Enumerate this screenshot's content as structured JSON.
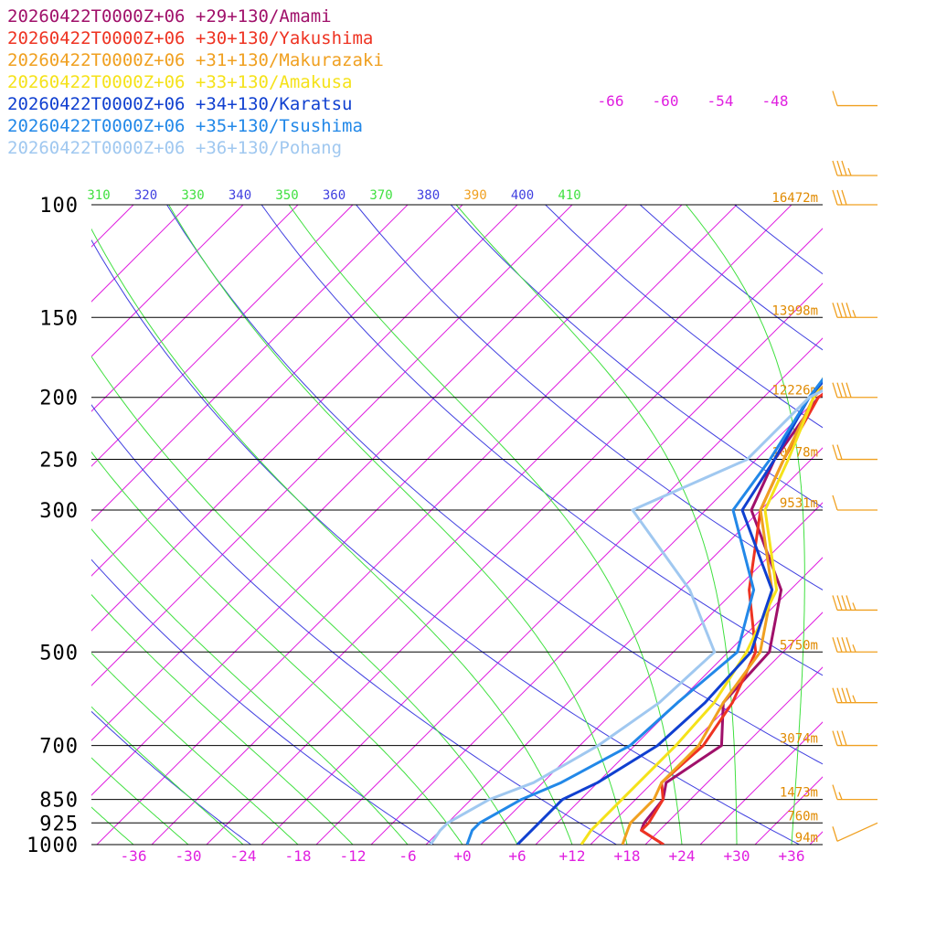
{
  "chart_data": {
    "type": "line",
    "title": "",
    "xlabel": "",
    "ylabel": "",
    "x_ticks": [
      "-36",
      "-30",
      "-24",
      "-18",
      "-12",
      "-6",
      "+0",
      "+6",
      "+12",
      "+18",
      "+24",
      "+30",
      "+36"
    ],
    "pressure_levels": [
      {
        "label": "100",
        "p": 100,
        "height": "16472m"
      },
      {
        "label": "150",
        "p": 150,
        "height": "13998m"
      },
      {
        "label": "200",
        "p": 200,
        "height": "12226m"
      },
      {
        "label": "250",
        "p": 250,
        "height": "10778m"
      },
      {
        "label": "300",
        "p": 300,
        "height": "9531m"
      },
      {
        "label": "500",
        "p": 500,
        "height": "5750m"
      },
      {
        "label": "700",
        "p": 700,
        "height": "3074m"
      },
      {
        "label": "850",
        "p": 850,
        "height": "1473m"
      },
      {
        "label": "925",
        "p": 925,
        "height": "760m"
      },
      {
        "label": "1000",
        "p": 1000,
        "height": "94m"
      }
    ],
    "theta_labels": [
      "310",
      "320",
      "330",
      "340",
      "350",
      "360",
      "370",
      "380",
      "390",
      "400",
      "410"
    ],
    "isotherm_labels": [
      "-66",
      "-60",
      "-54",
      "-48"
    ],
    "series": [
      {
        "name": "20260422T0000Z+06 +29+130/Amami",
        "color": "#a0106a",
        "points": [
          [
            1000,
            22
          ],
          [
            950,
            18
          ],
          [
            925,
            17.5
          ],
          [
            850,
            17
          ],
          [
            800,
            15.5
          ],
          [
            700,
            17.5
          ],
          [
            600,
            13
          ],
          [
            500,
            12.5
          ],
          [
            400,
            7
          ],
          [
            300,
            -5
          ],
          [
            250,
            -8
          ],
          [
            200,
            -10
          ],
          [
            175,
            -7
          ],
          [
            150,
            -4
          ],
          [
            125,
            -3
          ],
          [
            100,
            -4
          ],
          [
            80,
            6
          ],
          [
            60,
            19
          ],
          [
            45,
            30
          ]
        ]
      },
      {
        "name": "20260422T0000Z+06 +30+130/Yakushima",
        "color": "#ee3322",
        "points": [
          [
            1000,
            22
          ],
          [
            950,
            18
          ],
          [
            925,
            18
          ],
          [
            850,
            17
          ],
          [
            800,
            15
          ],
          [
            700,
            15.5
          ],
          [
            600,
            14
          ],
          [
            500,
            11
          ],
          [
            400,
            3.5
          ],
          [
            300,
            -4
          ],
          [
            250,
            -7
          ],
          [
            200,
            -10
          ],
          [
            175,
            -8
          ],
          [
            150,
            -4
          ],
          [
            125,
            -3
          ],
          [
            100,
            -2.5
          ],
          [
            80,
            8
          ],
          [
            60,
            19
          ],
          [
            45,
            30
          ]
        ]
      },
      {
        "name": "20260422T0000Z+06 +31+130/Makurazaki",
        "color": "#f0a020",
        "points": [
          [
            1000,
            17.5
          ],
          [
            950,
            16.5
          ],
          [
            925,
            16
          ],
          [
            850,
            16
          ],
          [
            800,
            15
          ],
          [
            700,
            15
          ],
          [
            600,
            13
          ],
          [
            500,
            11.5
          ],
          [
            400,
            6
          ],
          [
            300,
            -4
          ],
          [
            250,
            -7
          ],
          [
            200,
            -10.5
          ],
          [
            175,
            -11
          ],
          [
            150,
            -4
          ],
          [
            125,
            -1.5
          ],
          [
            100,
            -1
          ],
          [
            80,
            9
          ],
          [
            60,
            20
          ],
          [
            45,
            31
          ]
        ]
      },
      {
        "name": "20260422T0000Z+06 +33+130/Amakusa",
        "color": "#f5e21a",
        "points": [
          [
            1000,
            13
          ],
          [
            950,
            12.5
          ],
          [
            925,
            12.5
          ],
          [
            850,
            12.5
          ],
          [
            800,
            12.5
          ],
          [
            700,
            12.5
          ],
          [
            600,
            12
          ],
          [
            500,
            10
          ],
          [
            400,
            6.5
          ],
          [
            300,
            -3.5
          ],
          [
            250,
            -6.5
          ],
          [
            200,
            -10.5
          ],
          [
            175,
            -12.5
          ],
          [
            150,
            -4
          ],
          [
            125,
            0
          ],
          [
            100,
            0
          ],
          [
            80,
            11
          ],
          [
            60,
            22
          ],
          [
            45,
            32
          ]
        ]
      },
      {
        "name": "20260422T0000Z+06 +34+130/Karatsu",
        "color": "#1040d0",
        "points": [
          [
            1000,
            6
          ],
          [
            950,
            6
          ],
          [
            925,
            6
          ],
          [
            850,
            6
          ],
          [
            800,
            8
          ],
          [
            700,
            10.5
          ],
          [
            600,
            11
          ],
          [
            500,
            10.5
          ],
          [
            400,
            6
          ],
          [
            300,
            -6
          ],
          [
            250,
            -8
          ],
          [
            200,
            -11
          ],
          [
            175,
            -11.5
          ],
          [
            150,
            -11.5
          ],
          [
            125,
            -2
          ],
          [
            100,
            2.5
          ],
          [
            80,
            13
          ],
          [
            60,
            21
          ],
          [
            45,
            31
          ]
        ]
      },
      {
        "name": "20260422T0000Z+06 +35+130/Tsushima",
        "color": "#2288e8",
        "points": [
          [
            1000,
            0.5
          ],
          [
            950,
            -0.5
          ],
          [
            925,
            -0.5
          ],
          [
            850,
            1.5
          ],
          [
            800,
            4
          ],
          [
            700,
            7.5
          ],
          [
            600,
            8
          ],
          [
            500,
            9
          ],
          [
            400,
            4
          ],
          [
            300,
            -7
          ],
          [
            250,
            -8.5
          ],
          [
            200,
            -11
          ],
          [
            175,
            -12
          ],
          [
            150,
            -12
          ],
          [
            125,
            -3
          ],
          [
            100,
            3
          ],
          [
            80,
            14
          ],
          [
            60,
            23
          ],
          [
            45,
            34
          ]
        ]
      },
      {
        "name": "20260422T0000Z+06 +36+130/Pohang",
        "color": "#a0c8f0",
        "points": [
          [
            1000,
            -3.5
          ],
          [
            950,
            -4
          ],
          [
            925,
            -4
          ],
          [
            850,
            -2
          ],
          [
            800,
            1
          ],
          [
            700,
            4
          ],
          [
            600,
            6
          ],
          [
            500,
            6.5
          ],
          [
            400,
            -3
          ],
          [
            300,
            -18
          ],
          [
            250,
            -11
          ],
          [
            200,
            -11
          ],
          [
            175,
            -7
          ],
          [
            150,
            -2.5
          ],
          [
            125,
            -0.5
          ],
          [
            100,
            3.5
          ],
          [
            80,
            15
          ],
          [
            60,
            25
          ],
          [
            45,
            34
          ]
        ]
      }
    ],
    "wind_barbs": [
      {
        "p": 70,
        "speed": 10,
        "dir": 280
      },
      {
        "p": 90,
        "speed": 35,
        "dir": 285
      },
      {
        "p": 100,
        "speed": 30,
        "dir": 285
      },
      {
        "p": 150,
        "speed": 45,
        "dir": 290
      },
      {
        "p": 200,
        "speed": 40,
        "dir": 285
      },
      {
        "p": 250,
        "speed": 20,
        "dir": 280
      },
      {
        "p": 300,
        "speed": 10,
        "dir": 270
      },
      {
        "p": 430,
        "speed": 45,
        "dir": 280
      },
      {
        "p": 500,
        "speed": 45,
        "dir": 290
      },
      {
        "p": 600,
        "speed": 45,
        "dir": 300
      },
      {
        "p": 700,
        "speed": 30,
        "dir": 310
      },
      {
        "p": 850,
        "speed": 15,
        "dir": 270
      },
      {
        "p": 925,
        "speed": 10,
        "dir": 340
      }
    ],
    "colors": {
      "isobar": "#000000",
      "isotherm": "#e020e0",
      "dry_adiabat": "#4040e0",
      "moist_adiabat": "#40e040",
      "height_label": "#e08a00",
      "barb": "#f0a020"
    }
  }
}
